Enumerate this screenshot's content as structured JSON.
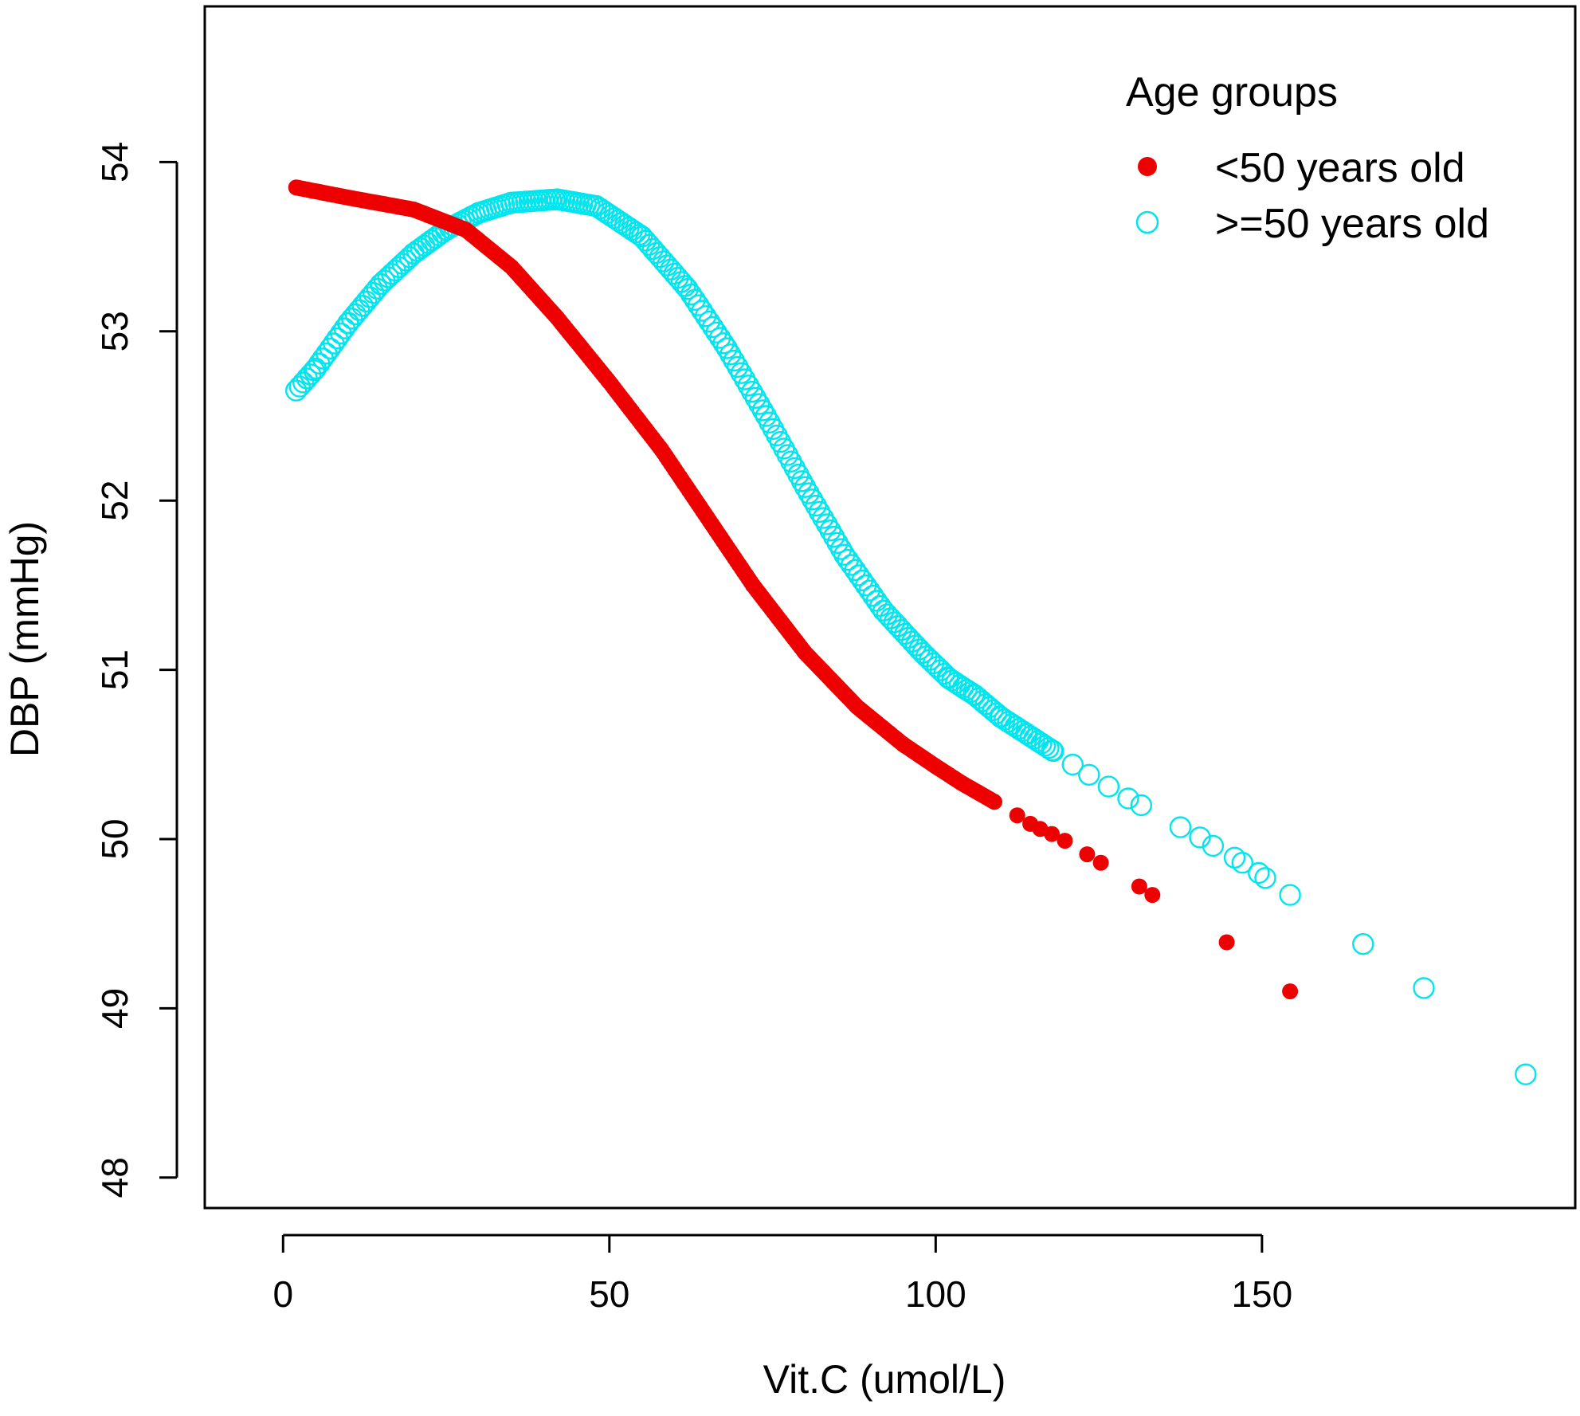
{
  "colors": {
    "series_young": "#ee0000",
    "series_old": "#00e5ee",
    "axis": "#000000",
    "background": "#ffffff"
  },
  "chart_data": {
    "type": "scatter",
    "title": "",
    "xlabel": "Vit.C (umol/L)",
    "ylabel": "DBP (mmHg)",
    "xlim": [
      -12,
      198
    ],
    "ylim": [
      47.82,
      54.92
    ],
    "x_ticks": [
      0,
      50,
      100,
      150
    ],
    "y_ticks": [
      48,
      49,
      50,
      51,
      52,
      53,
      54
    ],
    "grid": false,
    "legend": {
      "title": "Age groups",
      "placement": "top-right",
      "entries": [
        {
          "label": "<50 years old",
          "marker": "filled-circle",
          "series": "young"
        },
        {
          "label": ">=50 years old",
          "marker": "open-circle",
          "series": "old"
        }
      ]
    },
    "series": [
      {
        "key": "young",
        "name": "<50 years old",
        "marker": "filled-circle",
        "curve": [
          [
            2,
            53.85
          ],
          [
            10,
            53.79
          ],
          [
            20,
            53.72
          ],
          [
            28,
            53.6
          ],
          [
            35,
            53.38
          ],
          [
            42,
            53.08
          ],
          [
            50,
            52.7
          ],
          [
            58,
            52.3
          ],
          [
            65,
            51.9
          ],
          [
            72,
            51.5
          ],
          [
            80,
            51.1
          ],
          [
            88,
            50.78
          ],
          [
            95,
            50.56
          ],
          [
            100,
            50.43
          ],
          [
            104,
            50.33
          ],
          [
            109,
            50.22
          ]
        ],
        "curve_step": 0.35,
        "points": [
          [
            112.5,
            50.14
          ],
          [
            114.5,
            50.09
          ],
          [
            116,
            50.06
          ],
          [
            117.8,
            50.03
          ],
          [
            119.8,
            49.99
          ],
          [
            123.2,
            49.91
          ],
          [
            125.3,
            49.86
          ],
          [
            131.2,
            49.72
          ],
          [
            133.2,
            49.67
          ],
          [
            144.6,
            49.39
          ],
          [
            154.3,
            49.1
          ]
        ]
      },
      {
        "key": "old",
        "name": ">=50 years old",
        "marker": "open-circle",
        "curve": [
          [
            2,
            52.65
          ],
          [
            5,
            52.78
          ],
          [
            10,
            53.05
          ],
          [
            15,
            53.28
          ],
          [
            20,
            53.46
          ],
          [
            25,
            53.6
          ],
          [
            30,
            53.7
          ],
          [
            35,
            53.76
          ],
          [
            42,
            53.78
          ],
          [
            48,
            53.74
          ],
          [
            55,
            53.56
          ],
          [
            62,
            53.25
          ],
          [
            68,
            52.9
          ],
          [
            74,
            52.5
          ],
          [
            80,
            52.08
          ],
          [
            86,
            51.68
          ],
          [
            92,
            51.35
          ],
          [
            98,
            51.1
          ],
          [
            102,
            50.95
          ],
          [
            106,
            50.85
          ],
          [
            110,
            50.72
          ],
          [
            114,
            50.62
          ],
          [
            118,
            50.52
          ]
        ],
        "curve_step": 0.55,
        "points": [
          [
            121,
            50.44
          ],
          [
            123.5,
            50.38
          ],
          [
            126.5,
            50.31
          ],
          [
            129.5,
            50.24
          ],
          [
            131.5,
            50.2
          ],
          [
            137.5,
            50.07
          ],
          [
            140.5,
            50.01
          ],
          [
            142.5,
            49.96
          ],
          [
            145.8,
            49.89
          ],
          [
            147,
            49.86
          ],
          [
            149.5,
            49.8
          ],
          [
            150.5,
            49.77
          ],
          [
            154.3,
            49.67
          ],
          [
            165.5,
            49.38
          ],
          [
            174.8,
            49.12
          ],
          [
            190.4,
            48.61
          ]
        ]
      }
    ]
  }
}
